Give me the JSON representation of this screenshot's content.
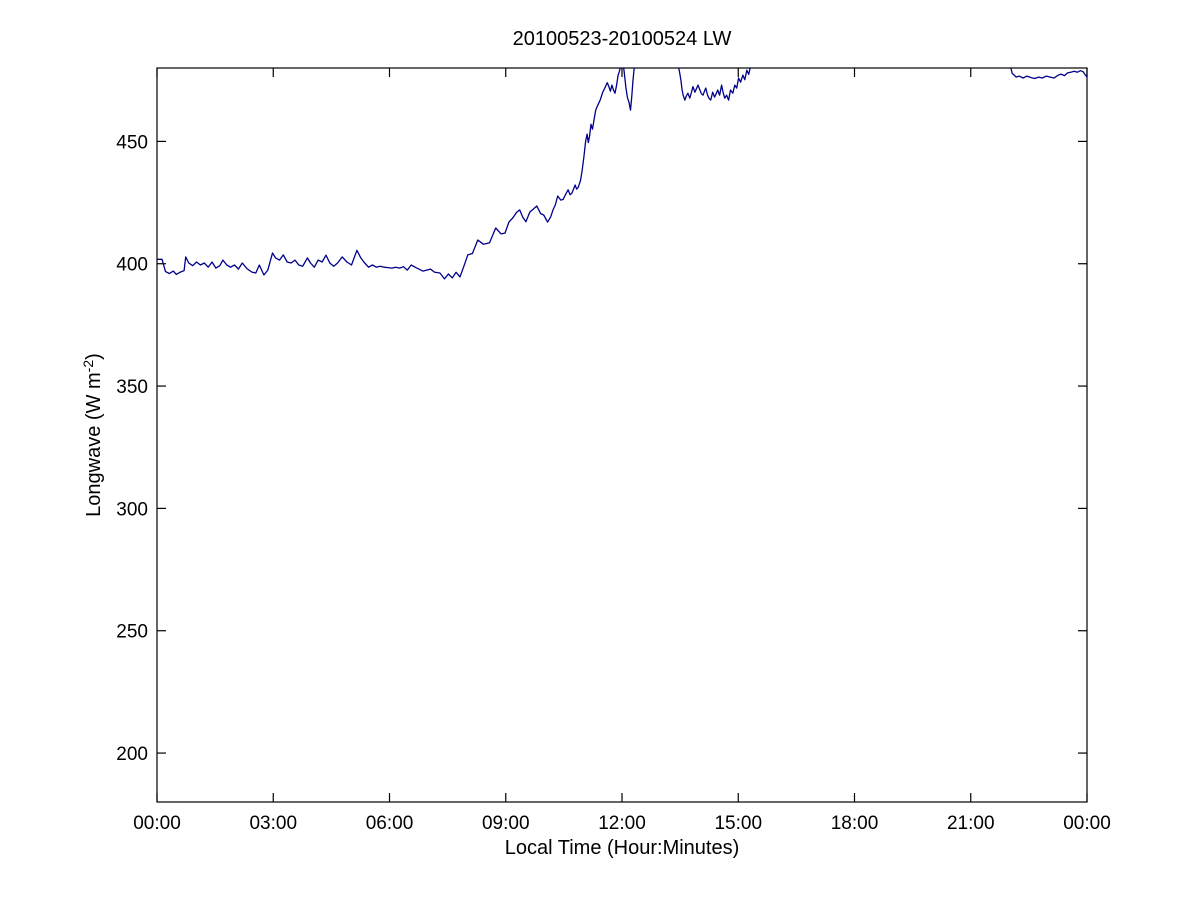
{
  "chart_data": {
    "type": "line",
    "title": "20100523-20100524 LW",
    "xlabel": "Local Time (Hour:Minutes)",
    "ylabel_text": "Longwave (W m-2)",
    "ylabel_parts": {
      "pre": "Longwave (W m",
      "sup": "-2",
      "post": ")"
    },
    "xlim": [
      0,
      24
    ],
    "ylim": [
      180,
      480
    ],
    "grid": false,
    "legend": null,
    "axis_color": "#000000",
    "line_color": "#00008B",
    "background": "#ffffff",
    "x_ticks": [
      {
        "t": 0,
        "label": "00:00"
      },
      {
        "t": 3,
        "label": "03:00"
      },
      {
        "t": 6,
        "label": "06:00"
      },
      {
        "t": 9,
        "label": "09:00"
      },
      {
        "t": 12,
        "label": "12:00"
      },
      {
        "t": 15,
        "label": "15:00"
      },
      {
        "t": 18,
        "label": "18:00"
      },
      {
        "t": 21,
        "label": "21:00"
      },
      {
        "t": 24,
        "label": "00:00"
      }
    ],
    "y_ticks": [
      {
        "v": 200,
        "label": "200"
      },
      {
        "v": 250,
        "label": "250"
      },
      {
        "v": 300,
        "label": "300"
      },
      {
        "v": 350,
        "label": "350"
      },
      {
        "v": 400,
        "label": "400"
      },
      {
        "v": 450,
        "label": "450"
      }
    ],
    "series": [
      {
        "name": "LW",
        "note_values_above_480_are_clipped_at_plot_top": true,
        "points": [
          [
            0.0,
            401.8
          ],
          [
            0.13,
            401.8
          ],
          [
            0.22,
            396.8
          ],
          [
            0.32,
            396.0
          ],
          [
            0.42,
            397.0
          ],
          [
            0.5,
            395.6
          ],
          [
            0.6,
            396.6
          ],
          [
            0.7,
            397.2
          ],
          [
            0.74,
            402.8
          ],
          [
            0.82,
            400.3
          ],
          [
            0.92,
            399.2
          ],
          [
            1.02,
            400.7
          ],
          [
            1.12,
            399.5
          ],
          [
            1.22,
            400.3
          ],
          [
            1.32,
            398.6
          ],
          [
            1.42,
            400.7
          ],
          [
            1.52,
            398.2
          ],
          [
            1.62,
            399.2
          ],
          [
            1.7,
            401.5
          ],
          [
            1.8,
            399.5
          ],
          [
            1.9,
            398.6
          ],
          [
            2.0,
            399.5
          ],
          [
            2.1,
            397.8
          ],
          [
            2.2,
            400.3
          ],
          [
            2.32,
            398.0
          ],
          [
            2.45,
            396.6
          ],
          [
            2.55,
            396.2
          ],
          [
            2.64,
            399.5
          ],
          [
            2.76,
            395.4
          ],
          [
            2.86,
            397.4
          ],
          [
            2.98,
            404.4
          ],
          [
            3.06,
            402.4
          ],
          [
            3.16,
            401.5
          ],
          [
            3.26,
            403.6
          ],
          [
            3.36,
            400.7
          ],
          [
            3.46,
            400.3
          ],
          [
            3.56,
            401.5
          ],
          [
            3.66,
            399.5
          ],
          [
            3.76,
            399.0
          ],
          [
            3.88,
            402.4
          ],
          [
            3.96,
            400.3
          ],
          [
            4.06,
            398.6
          ],
          [
            4.16,
            401.5
          ],
          [
            4.26,
            400.7
          ],
          [
            4.36,
            403.5
          ],
          [
            4.46,
            400.3
          ],
          [
            4.56,
            399.0
          ],
          [
            4.66,
            400.3
          ],
          [
            4.78,
            402.8
          ],
          [
            4.9,
            400.7
          ],
          [
            5.02,
            399.5
          ],
          [
            5.16,
            405.5
          ],
          [
            5.26,
            402.4
          ],
          [
            5.36,
            400.3
          ],
          [
            5.46,
            398.6
          ],
          [
            5.56,
            399.5
          ],
          [
            5.66,
            398.6
          ],
          [
            5.76,
            399.0
          ],
          [
            5.86,
            398.6
          ],
          [
            5.96,
            398.4
          ],
          [
            6.06,
            398.2
          ],
          [
            6.16,
            398.6
          ],
          [
            6.26,
            398.2
          ],
          [
            6.36,
            398.8
          ],
          [
            6.46,
            397.4
          ],
          [
            6.56,
            399.5
          ],
          [
            6.66,
            398.6
          ],
          [
            6.76,
            397.8
          ],
          [
            6.86,
            397.0
          ],
          [
            6.96,
            397.4
          ],
          [
            7.06,
            397.8
          ],
          [
            7.16,
            396.6
          ],
          [
            7.3,
            396.2
          ],
          [
            7.42,
            393.8
          ],
          [
            7.52,
            395.8
          ],
          [
            7.62,
            394.2
          ],
          [
            7.72,
            396.5
          ],
          [
            7.82,
            394.6
          ],
          [
            7.92,
            399.0
          ],
          [
            8.02,
            403.6
          ],
          [
            8.14,
            404.2
          ],
          [
            8.28,
            409.7
          ],
          [
            8.42,
            408.0
          ],
          [
            8.58,
            408.5
          ],
          [
            8.74,
            414.6
          ],
          [
            8.88,
            412.2
          ],
          [
            8.98,
            412.5
          ],
          [
            9.08,
            417.0
          ],
          [
            9.18,
            418.7
          ],
          [
            9.28,
            421.0
          ],
          [
            9.36,
            422.0
          ],
          [
            9.44,
            419.0
          ],
          [
            9.52,
            417.2
          ],
          [
            9.62,
            421.1
          ],
          [
            9.72,
            422.5
          ],
          [
            9.8,
            423.6
          ],
          [
            9.9,
            420.5
          ],
          [
            9.98,
            419.9
          ],
          [
            10.08,
            417.0
          ],
          [
            10.16,
            419.2
          ],
          [
            10.22,
            422.0
          ],
          [
            10.28,
            424.0
          ],
          [
            10.34,
            427.7
          ],
          [
            10.42,
            426.0
          ],
          [
            10.48,
            426.3
          ],
          [
            10.55,
            428.5
          ],
          [
            10.61,
            430.2
          ],
          [
            10.66,
            428.2
          ],
          [
            10.71,
            428.9
          ],
          [
            10.76,
            431.0
          ],
          [
            10.79,
            432.2
          ],
          [
            10.83,
            430.5
          ],
          [
            10.87,
            431.2
          ],
          [
            10.93,
            434.0
          ],
          [
            10.97,
            438.0
          ],
          [
            11.02,
            444.0
          ],
          [
            11.06,
            450.0
          ],
          [
            11.1,
            453.0
          ],
          [
            11.13,
            449.5
          ],
          [
            11.16,
            452.0
          ],
          [
            11.2,
            457.0
          ],
          [
            11.24,
            455.0
          ],
          [
            11.28,
            459.0
          ],
          [
            11.32,
            462.8
          ],
          [
            11.38,
            465.0
          ],
          [
            11.44,
            467.0
          ],
          [
            11.5,
            470.0
          ],
          [
            11.56,
            472.0
          ],
          [
            11.62,
            474.0
          ],
          [
            11.66,
            472.5
          ],
          [
            11.7,
            470.5
          ],
          [
            11.74,
            473.0
          ],
          [
            11.78,
            471.0
          ],
          [
            11.82,
            469.7
          ],
          [
            11.86,
            473.0
          ],
          [
            11.9,
            477.0
          ],
          [
            11.93,
            478.5
          ],
          [
            11.97,
            480.8
          ],
          [
            12.02,
            483.0
          ],
          [
            12.06,
            478.0
          ],
          [
            12.1,
            472.0
          ],
          [
            12.14,
            468.0
          ],
          [
            12.18,
            466.0
          ],
          [
            12.22,
            462.8
          ],
          [
            12.25,
            468.0
          ],
          [
            12.28,
            474.0
          ],
          [
            12.32,
            481.0
          ],
          [
            12.42,
            495.0
          ],
          [
            13.34,
            495.0
          ],
          [
            13.44,
            482.0
          ],
          [
            13.49,
            478.0
          ],
          [
            13.52,
            475.0
          ],
          [
            13.55,
            471.0
          ],
          [
            13.58,
            468.9
          ],
          [
            13.62,
            466.9
          ],
          [
            13.66,
            468.5
          ],
          [
            13.7,
            469.7
          ],
          [
            13.75,
            467.7
          ],
          [
            13.79,
            470.0
          ],
          [
            13.83,
            472.4
          ],
          [
            13.88,
            470.1
          ],
          [
            13.92,
            471.5
          ],
          [
            13.96,
            473.0
          ],
          [
            14.01,
            471.0
          ],
          [
            14.05,
            469.5
          ],
          [
            14.09,
            468.9
          ],
          [
            14.13,
            470.5
          ],
          [
            14.16,
            471.8
          ],
          [
            14.21,
            468.9
          ],
          [
            14.25,
            467.5
          ],
          [
            14.29,
            466.9
          ],
          [
            14.34,
            470.1
          ],
          [
            14.39,
            468.1
          ],
          [
            14.43,
            469.5
          ],
          [
            14.47,
            471.0
          ],
          [
            14.52,
            468.9
          ],
          [
            14.57,
            473.0
          ],
          [
            14.61,
            470.0
          ],
          [
            14.65,
            467.7
          ],
          [
            14.7,
            468.9
          ],
          [
            14.75,
            466.9
          ],
          [
            14.8,
            471.0
          ],
          [
            14.86,
            469.7
          ],
          [
            14.91,
            473.0
          ],
          [
            14.96,
            471.8
          ],
          [
            15.01,
            475.9
          ],
          [
            15.06,
            474.2
          ],
          [
            15.12,
            477.1
          ],
          [
            15.17,
            475.2
          ],
          [
            15.22,
            479.1
          ],
          [
            15.27,
            477.4
          ],
          [
            15.32,
            480.8
          ],
          [
            15.42,
            495.0
          ],
          [
            21.95,
            495.0
          ],
          [
            22.02,
            481.0
          ],
          [
            22.07,
            477.8
          ],
          [
            22.12,
            477.1
          ],
          [
            22.17,
            476.3
          ],
          [
            22.25,
            476.7
          ],
          [
            22.35,
            475.9
          ],
          [
            22.45,
            476.7
          ],
          [
            22.55,
            476.1
          ],
          [
            22.65,
            475.7
          ],
          [
            22.75,
            476.3
          ],
          [
            22.85,
            475.9
          ],
          [
            22.95,
            476.7
          ],
          [
            23.05,
            476.3
          ],
          [
            23.15,
            475.9
          ],
          [
            23.25,
            477.0
          ],
          [
            23.33,
            477.5
          ],
          [
            23.42,
            476.9
          ],
          [
            23.5,
            478.0
          ],
          [
            23.58,
            478.3
          ],
          [
            23.67,
            478.7
          ],
          [
            23.75,
            478.3
          ],
          [
            23.83,
            478.9
          ],
          [
            23.9,
            478.5
          ],
          [
            23.95,
            477.3
          ],
          [
            24.0,
            476.3
          ]
        ]
      }
    ]
  }
}
